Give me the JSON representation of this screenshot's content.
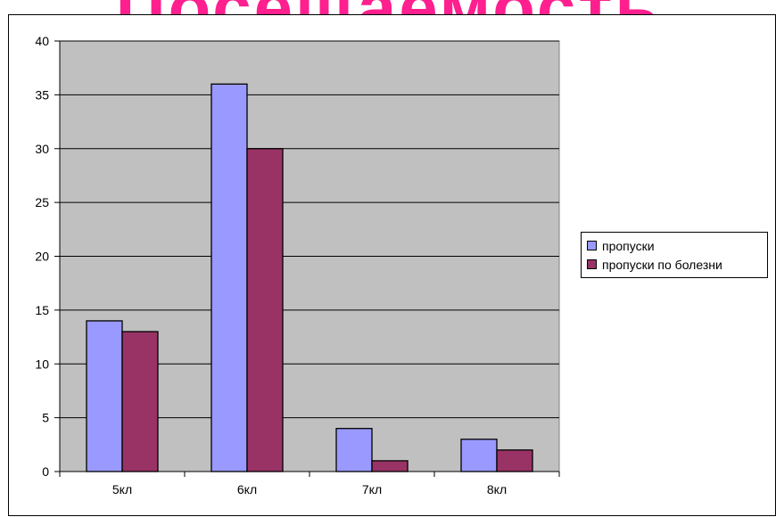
{
  "page_title": "Посещаемость",
  "chart_data": {
    "type": "bar",
    "categories": [
      "5кл",
      "6кл",
      "7кл",
      "8кл"
    ],
    "series": [
      {
        "name": "пропуски",
        "values": [
          14,
          36,
          4,
          3
        ],
        "color": "#9999ff"
      },
      {
        "name": "пропуски по болезни",
        "values": [
          13,
          30,
          1,
          2
        ],
        "color": "#993366"
      }
    ],
    "ylim": [
      0,
      40
    ],
    "yticks": [
      "0",
      "5",
      "10",
      "15",
      "20",
      "25",
      "30",
      "35",
      "40"
    ],
    "grid": true,
    "legend_position": "right",
    "plot_background": "#c0c0c0",
    "title": "",
    "xlabel": "",
    "ylabel": ""
  }
}
